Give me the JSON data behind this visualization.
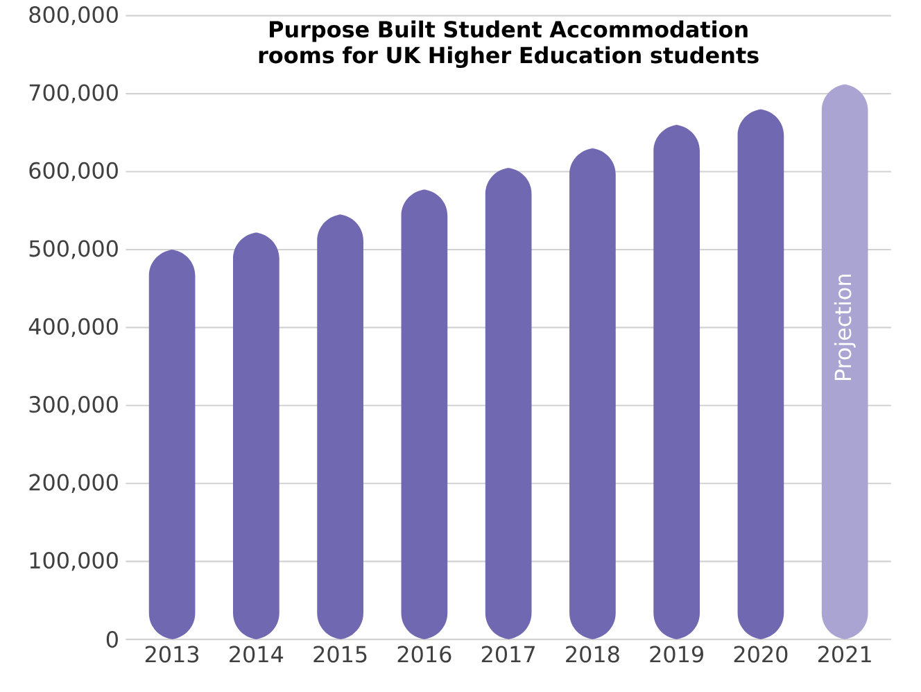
{
  "chart_data": {
    "type": "bar",
    "title": "Purpose Built Student Accommodation rooms for UK Higher Education students",
    "categories": [
      "2013",
      "2014",
      "2015",
      "2016",
      "2017",
      "2018",
      "2019",
      "2020",
      "2021"
    ],
    "values": [
      500000,
      522000,
      545000,
      577000,
      605000,
      630000,
      660000,
      680000,
      712000
    ],
    "colors": [
      "#7068b0",
      "#7068b0",
      "#7068b0",
      "#7068b0",
      "#7068b0",
      "#7068b0",
      "#7068b0",
      "#7068b0",
      "#aaa4d3"
    ],
    "ylim": [
      0,
      800000
    ],
    "yticks": [
      {
        "value": 0,
        "label": "0"
      },
      {
        "value": 100000,
        "label": "100,000"
      },
      {
        "value": 200000,
        "label": "200,000"
      },
      {
        "value": 300000,
        "label": "300,000"
      },
      {
        "value": 400000,
        "label": "400,000"
      },
      {
        "value": 500000,
        "label": "500,000"
      },
      {
        "value": 600000,
        "label": "600,000"
      },
      {
        "value": 700000,
        "label": "700,000"
      },
      {
        "value": 800000,
        "label": "800,000"
      }
    ],
    "grid": "y",
    "annotations": [
      "Projection"
    ]
  }
}
